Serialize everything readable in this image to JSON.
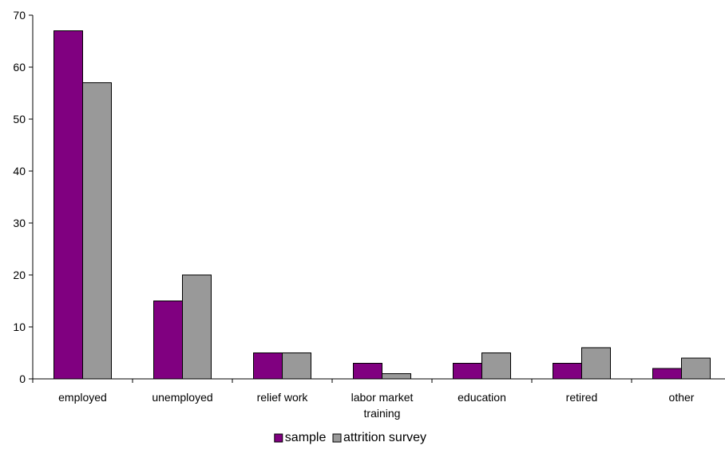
{
  "chart_data": {
    "type": "bar",
    "title": "",
    "xlabel": "",
    "ylabel": "",
    "categories": [
      [
        "employed"
      ],
      [
        "unemployed"
      ],
      [
        "relief work"
      ],
      [
        "labor market",
        "training"
      ],
      [
        "education"
      ],
      [
        "retired"
      ],
      [
        "other"
      ]
    ],
    "series": [
      {
        "name": "sample",
        "color": "#800080",
        "values": [
          67,
          15,
          5,
          3,
          3,
          3,
          2
        ]
      },
      {
        "name": "attrition survey",
        "color": "#999999",
        "values": [
          57,
          20,
          5,
          1,
          5,
          6,
          4
        ]
      }
    ],
    "ylim": [
      0,
      70
    ],
    "yticks": [
      0,
      10,
      20,
      30,
      40,
      50,
      60,
      70
    ],
    "grid": false,
    "legend_position": "bottom"
  }
}
